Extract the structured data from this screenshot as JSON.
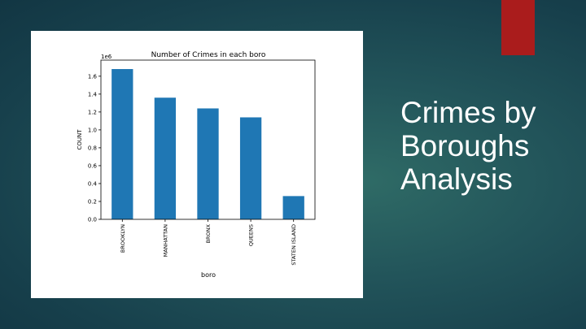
{
  "slide": {
    "title": "Crimes by\nBoroughs\nAnalysis",
    "accent_color": "#aa1c1c"
  },
  "chart_data": {
    "type": "bar",
    "title": "Number of Crimes in each boro",
    "xlabel": "boro",
    "ylabel": "COUNT",
    "y_scale_label": "1e6",
    "categories": [
      "BROOKLYN",
      "MANHATTAN",
      "BRONX",
      "QUEENS",
      "STATEN ISLAND"
    ],
    "values": [
      1.68,
      1.36,
      1.24,
      1.14,
      0.26
    ],
    "ylim": [
      0,
      1.78
    ],
    "yticks": [
      "0.0",
      "0.2",
      "0.4",
      "0.6",
      "0.8",
      "1.0",
      "1.2",
      "1.4",
      "1.6"
    ],
    "bar_color": "#1f77b4",
    "grid": false,
    "legend": "none"
  }
}
